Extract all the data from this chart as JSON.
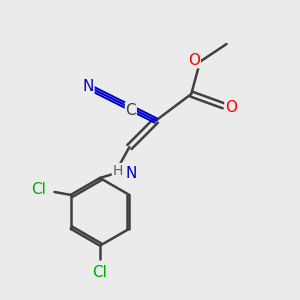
{
  "bg_color": "#ebebeb",
  "atom_colors": {
    "C": "#404040",
    "N": "#0000cc",
    "O": "#ff0000",
    "Cl": "#00aa00",
    "H": "#606060"
  },
  "bond_color": "#404040",
  "bond_width": 1.8,
  "font_size_atom": 11,
  "font_size_small": 9
}
